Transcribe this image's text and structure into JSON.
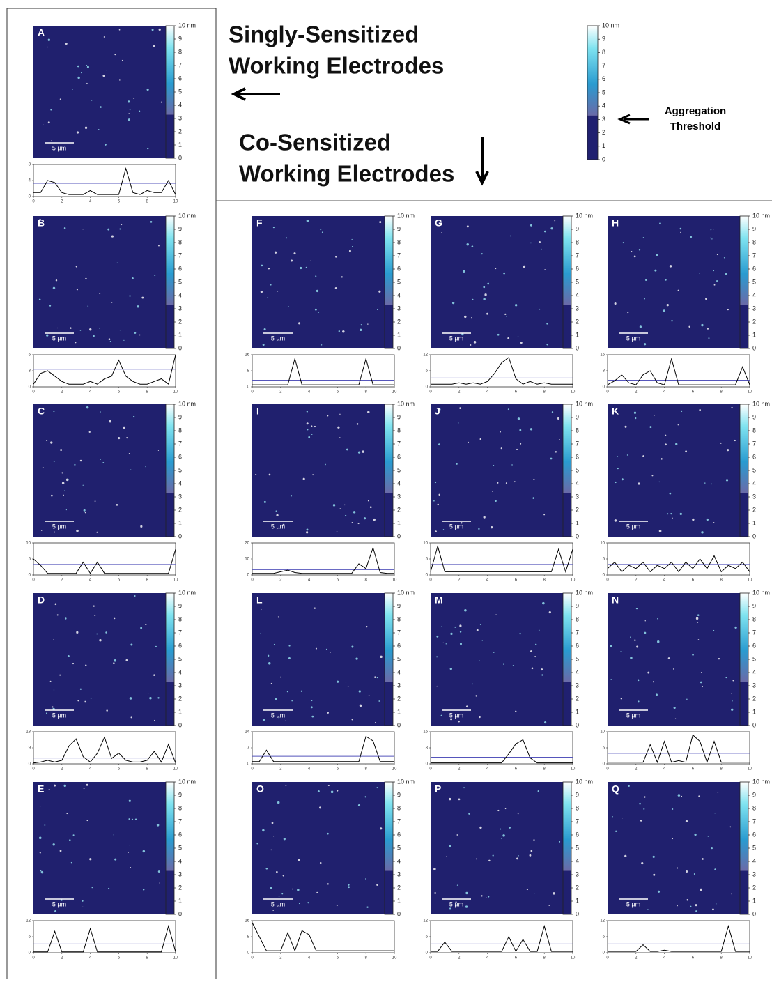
{
  "headings": {
    "singly": [
      "Singly-Sensitized",
      "Working Electrodes"
    ],
    "co": [
      "Co-Sensitized",
      "Working Electrodes"
    ]
  },
  "legend": {
    "label": [
      "Aggregation",
      "Threshold"
    ]
  },
  "colorbar": {
    "ticks": [
      {
        "value": 10,
        "label": "10 nm"
      },
      9,
      8,
      7,
      6,
      5,
      4,
      3,
      2,
      1,
      0
    ],
    "threshold": 3.3
  },
  "profile_x": [
    0,
    0.5,
    1,
    1.5,
    2,
    2.5,
    3,
    3.5,
    4,
    4.5,
    5,
    5.5,
    6,
    6.5,
    7,
    7.5,
    8,
    8.5,
    9,
    9.5,
    10
  ],
  "profile_xticks": [
    0,
    2,
    4,
    6,
    8,
    10
  ],
  "panels": [
    {
      "label": "A",
      "scale_bar": "5 µm",
      "yticks": [
        0,
        4,
        8
      ],
      "values": [
        1,
        1,
        4,
        3.5,
        1,
        0.5,
        0.5,
        0.5,
        1.5,
        0.5,
        0.5,
        0.5,
        0.5,
        7,
        1,
        0.5,
        1.5,
        1,
        1,
        4,
        0.5
      ]
    },
    {
      "label": "B",
      "scale_bar": "5 µm",
      "yticks": [
        0,
        3,
        6
      ],
      "values": [
        0.5,
        2.5,
        3,
        2,
        1,
        0.5,
        0.5,
        0.5,
        1,
        0.5,
        1.5,
        2,
        5,
        2,
        1,
        0.5,
        0.5,
        1,
        1.5,
        0.5,
        6
      ]
    },
    {
      "label": "C",
      "scale_bar": "5 µm",
      "yticks": [
        0,
        5,
        10
      ],
      "values": [
        5,
        3,
        0.5,
        0.5,
        0.5,
        0.5,
        0.5,
        4,
        0.5,
        4,
        0.5,
        0.5,
        0.5,
        0.5,
        0.5,
        0.5,
        0.5,
        0.5,
        0.5,
        0.5,
        8
      ]
    },
    {
      "label": "D",
      "scale_bar": "5 µm",
      "yticks": [
        0,
        9,
        18
      ],
      "values": [
        0.5,
        1,
        2,
        1,
        2,
        10,
        14,
        4,
        1,
        6,
        15,
        3,
        6,
        2,
        1,
        1,
        2,
        7,
        1,
        11,
        0.5
      ]
    },
    {
      "label": "E",
      "scale_bar": "5 µm",
      "yticks": [
        0,
        6,
        12
      ],
      "values": [
        0.3,
        0.3,
        0.3,
        8,
        0.3,
        0.3,
        0.3,
        0.3,
        9,
        0.3,
        0.3,
        0.3,
        0.3,
        0.3,
        0.3,
        0.3,
        0.3,
        0.3,
        0.3,
        10,
        0.3
      ]
    },
    {
      "label": "F",
      "scale_bar": "5 µm",
      "yticks": [
        0,
        8,
        16
      ],
      "values": [
        1,
        1,
        1,
        1,
        1,
        1,
        14,
        1,
        1,
        1,
        1,
        1,
        1,
        1,
        1,
        1,
        14,
        1,
        1,
        1,
        1
      ]
    },
    {
      "label": "G",
      "scale_bar": "5 µm",
      "yticks": [
        0,
        6,
        12
      ],
      "values": [
        1,
        1,
        1,
        1,
        1.5,
        1,
        1.5,
        1,
        2,
        5,
        9,
        11,
        3,
        1,
        2,
        1,
        1.5,
        1,
        1,
        1,
        1
      ]
    },
    {
      "label": "H",
      "scale_bar": "5 µm",
      "yticks": [
        0,
        8,
        16
      ],
      "values": [
        1,
        3,
        6,
        2,
        1,
        6,
        8,
        2,
        1,
        14,
        1,
        1,
        1,
        1,
        1,
        1,
        1,
        1,
        1,
        10,
        1
      ]
    },
    {
      "label": "I",
      "scale_bar": "5 µm",
      "yticks": [
        0,
        10,
        20
      ],
      "values": [
        1,
        1,
        1,
        1,
        2,
        3,
        1.5,
        1,
        1,
        1,
        1,
        1,
        1,
        1,
        1,
        7,
        4,
        17,
        1.5,
        1,
        1
      ]
    },
    {
      "label": "J",
      "scale_bar": "5 µm",
      "yticks": [
        0,
        5,
        10
      ],
      "values": [
        1,
        9,
        1,
        1,
        1,
        1,
        1,
        1,
        1,
        1,
        1,
        1,
        1,
        1,
        1,
        1,
        1,
        1,
        8,
        1,
        8
      ]
    },
    {
      "label": "K",
      "scale_bar": "5 µm",
      "yticks": [
        0,
        5,
        10
      ],
      "values": [
        2,
        4,
        1,
        3,
        2,
        4,
        1,
        3,
        2,
        4,
        1,
        4,
        2,
        5,
        2,
        6,
        1,
        3,
        2,
        4,
        1
      ]
    },
    {
      "label": "L",
      "scale_bar": "5 µm",
      "yticks": [
        0,
        7,
        14
      ],
      "values": [
        1,
        1,
        6,
        1,
        1,
        1,
        1,
        1,
        1,
        1,
        1,
        1,
        1,
        1,
        1,
        1,
        12,
        10,
        1,
        1,
        1
      ]
    },
    {
      "label": "M",
      "scale_bar": "5 µm",
      "yticks": [
        0,
        8,
        16
      ],
      "values": [
        0.5,
        0.5,
        0.5,
        0.5,
        0.5,
        0.5,
        0.5,
        0.5,
        0.5,
        0.5,
        0.5,
        5,
        10,
        12,
        3,
        0.5,
        0.5,
        0.5,
        0.5,
        0.5,
        0.5
      ]
    },
    {
      "label": "N",
      "scale_bar": "5 µm",
      "yticks": [
        0,
        5,
        10
      ],
      "values": [
        0.5,
        0.5,
        0.5,
        0.5,
        0.5,
        0.5,
        6,
        0.5,
        7,
        0.5,
        1,
        0.5,
        9,
        7,
        0.5,
        7,
        0.5,
        0.5,
        0.5,
        0.5,
        0.5
      ]
    },
    {
      "label": "O",
      "scale_bar": "5 µm",
      "yticks": [
        0,
        8,
        16
      ],
      "values": [
        15,
        8,
        1,
        1,
        1,
        10,
        1,
        11,
        9,
        1,
        1,
        1,
        1,
        1,
        1,
        1,
        1,
        1,
        1,
        1,
        1
      ]
    },
    {
      "label": "P",
      "scale_bar": "5 µm",
      "yticks": [
        0,
        6,
        12
      ],
      "values": [
        0.5,
        0.5,
        4,
        0.5,
        0.5,
        0.5,
        0.5,
        0.5,
        0.5,
        0.5,
        0.5,
        6,
        0.5,
        5,
        0.5,
        0.5,
        10,
        0.5,
        0.5,
        0.5,
        0.5
      ]
    },
    {
      "label": "Q",
      "scale_bar": "5 µm",
      "yticks": [
        0,
        6,
        12
      ],
      "values": [
        0.5,
        0.5,
        0.5,
        0.5,
        0.5,
        3,
        0.5,
        0.5,
        1,
        0.5,
        0.5,
        0.5,
        0.5,
        0.5,
        0.5,
        0.5,
        0.5,
        10,
        0.5,
        0.5,
        0.5
      ]
    }
  ]
}
